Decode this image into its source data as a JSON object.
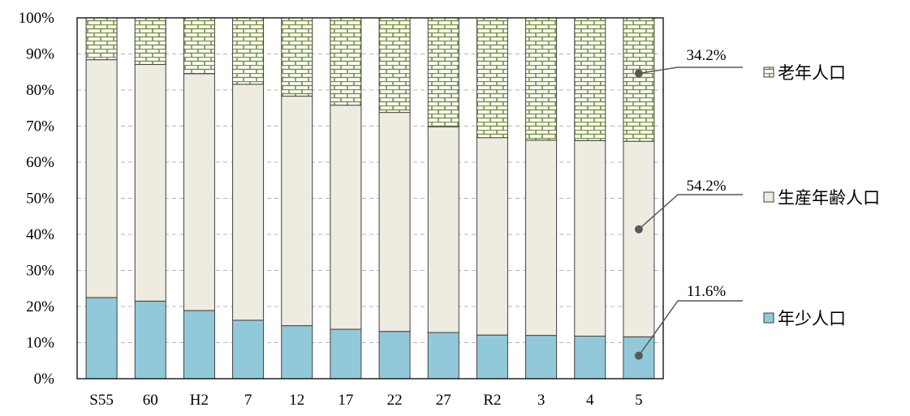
{
  "chart_data": {
    "type": "bar",
    "stacked": true,
    "categories": [
      "S55",
      "60",
      "H2",
      "7",
      "12",
      "17",
      "22",
      "27",
      "R2",
      "3",
      "4",
      "5"
    ],
    "series": [
      {
        "name": "年少人口",
        "color": "#92c9da",
        "values": [
          22.5,
          21.5,
          18.9,
          16.2,
          14.7,
          13.7,
          13.1,
          12.8,
          12.1,
          12.0,
          11.8,
          11.6
        ]
      },
      {
        "name": "生産年齢人口",
        "color": "#eeece1",
        "values": [
          65.9,
          65.6,
          65.6,
          65.4,
          63.6,
          62.1,
          60.7,
          57.0,
          54.7,
          54.1,
          54.2,
          54.2
        ]
      },
      {
        "name": "老年人口",
        "color": "#ffffff",
        "pattern_color": "#77933c",
        "values": [
          11.6,
          12.9,
          15.5,
          18.4,
          21.7,
          24.2,
          26.2,
          30.2,
          33.2,
          33.9,
          34.0,
          34.2
        ]
      }
    ],
    "ylim": [
      0,
      100
    ],
    "yticks": [
      "0%",
      "10%",
      "20%",
      "30%",
      "40%",
      "50%",
      "60%",
      "70%",
      "80%",
      "90%",
      "100%"
    ],
    "grid": true,
    "legend_position": "right",
    "annotations": [
      {
        "text": "34.2%",
        "category": "5",
        "series": "老年人口"
      },
      {
        "text": "54.2%",
        "category": "5",
        "series": "生産年齢人口"
      },
      {
        "text": "11.6%",
        "category": "5",
        "series": "年少人口"
      }
    ],
    "legend": [
      {
        "series": "老年人口",
        "label": "老年人口"
      },
      {
        "series": "生産年齢人口",
        "label": "生産年齢人口"
      },
      {
        "series": "年少人口",
        "label": "年少人口"
      }
    ]
  }
}
